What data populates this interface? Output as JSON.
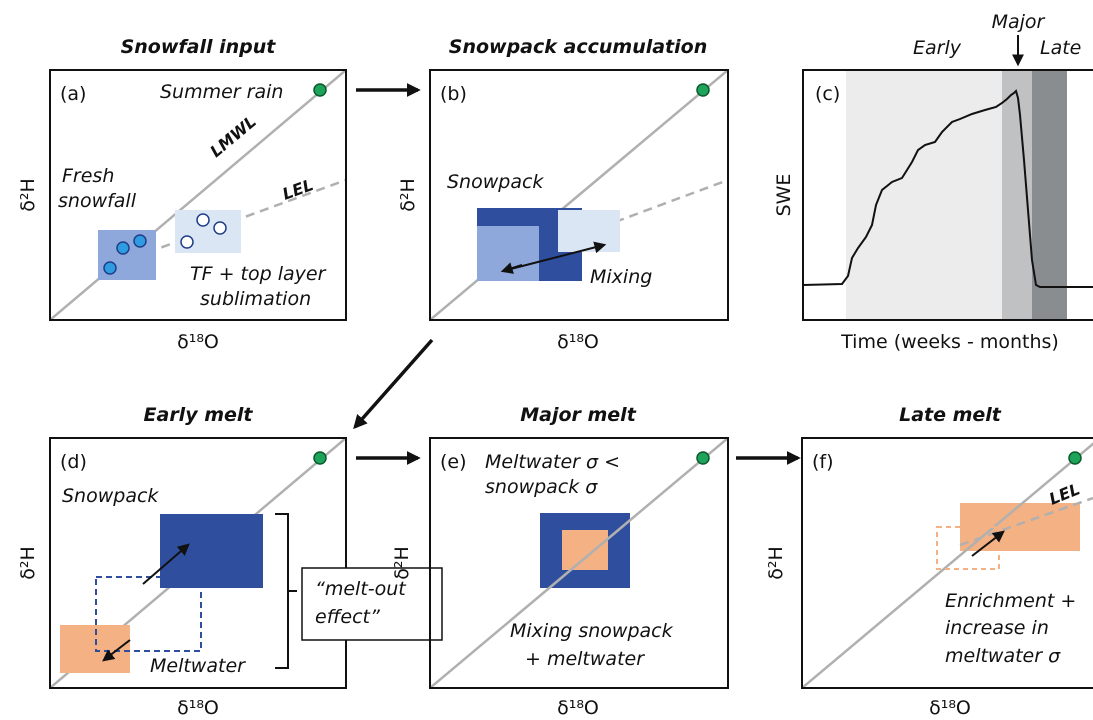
{
  "axes": {
    "x": "δ¹⁸O",
    "y": "δ²H",
    "swe_y": "SWE",
    "swe_x": "Time (weeks - months)"
  },
  "panels": {
    "a": {
      "title": "Snowfall input",
      "label": "(a)",
      "summer_rain": "Summer rain",
      "lmwl": "LMWL",
      "lel": "LEL",
      "fresh_1": "Fresh",
      "fresh_2": "snowfall",
      "tf_1": "TF + top layer",
      "tf_2": "sublimation"
    },
    "b": {
      "title": "Snowpack accumulation",
      "label": "(b)",
      "snowpack": "Snowpack",
      "mixing": "Mixing"
    },
    "c": {
      "label": "(c)",
      "early": "Early",
      "major": "Major",
      "late": "Late"
    },
    "d": {
      "title": "Early melt",
      "label": "(d)",
      "snowpack": "Snowpack",
      "meltwater": "Meltwater",
      "effect_1": "“melt-out",
      "effect_2": "effect”"
    },
    "e": {
      "title": "Major melt",
      "label": "(e)",
      "note_1": "Meltwater σ <",
      "note_2": "snowpack σ",
      "mix_1": "Mixing snowpack",
      "mix_2": "+ meltwater"
    },
    "f": {
      "title": "Late melt",
      "label": "(f)",
      "lel": "LEL",
      "note_1": "Enrichment +",
      "note_2": "increase in",
      "note_3": "meltwater σ"
    }
  },
  "colors": {
    "dark_blue": "#2f4f9e",
    "mid_blue": "#8fa8db",
    "light_blue": "#dbe6f5",
    "orange": "#f4b183",
    "green": "#1ea35b",
    "gray_line": "#b0b0b0"
  }
}
